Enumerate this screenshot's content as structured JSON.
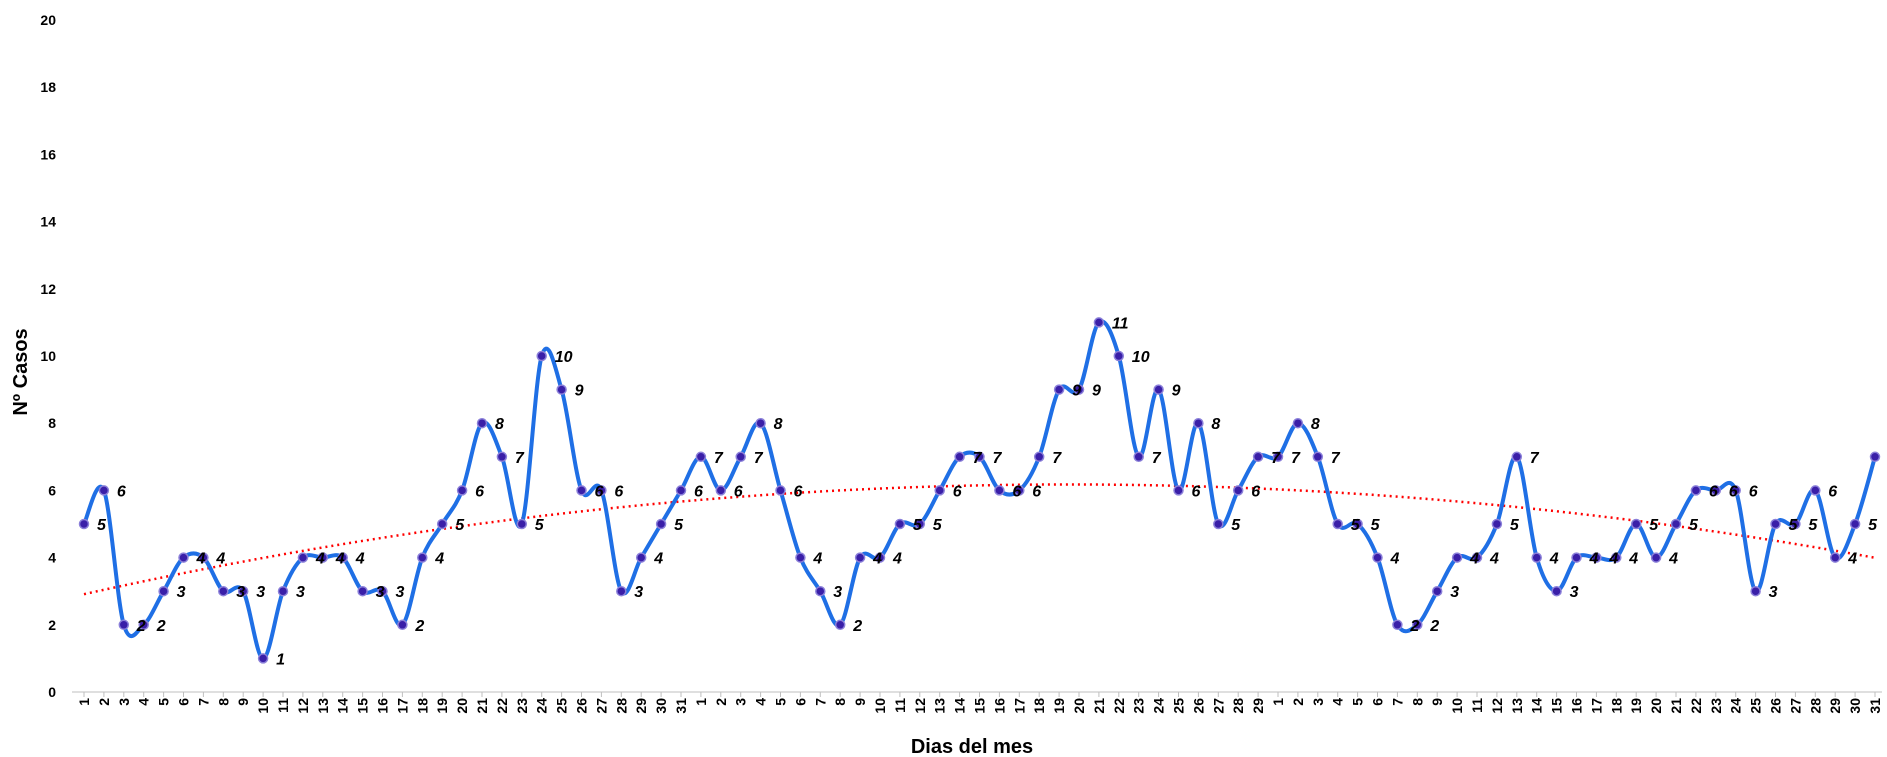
{
  "chart_data": {
    "type": "line",
    "xlabel": "Dias del mes",
    "ylabel": "Nº Casos",
    "ylim": [
      0,
      20
    ],
    "yticks": [
      0,
      2,
      4,
      6,
      8,
      10,
      12,
      14,
      16,
      18,
      20
    ],
    "grid": false,
    "categories": [
      "1",
      "2",
      "3",
      "4",
      "5",
      "6",
      "7",
      "8",
      "9",
      "10",
      "11",
      "12",
      "13",
      "14",
      "15",
      "16",
      "17",
      "18",
      "19",
      "20",
      "21",
      "22",
      "23",
      "24",
      "25",
      "26",
      "27",
      "28",
      "29",
      "30",
      "31",
      "1",
      "2",
      "3",
      "4",
      "5",
      "6",
      "7",
      "8",
      "9",
      "10",
      "11",
      "12",
      "13",
      "14",
      "15",
      "16",
      "17",
      "18",
      "19",
      "20",
      "21",
      "22",
      "23",
      "24",
      "25",
      "26",
      "27",
      "28",
      "29",
      "1",
      "2",
      "3",
      "4",
      "5",
      "6",
      "7",
      "8",
      "9",
      "10",
      "11",
      "12",
      "13",
      "14",
      "15",
      "16",
      "17",
      "18",
      "19",
      "20",
      "21",
      "22",
      "23",
      "24",
      "25",
      "26",
      "27",
      "28",
      "29",
      "30",
      "31"
    ],
    "series": [
      {
        "values": [
          5,
          6,
          2,
          2,
          3,
          4,
          4,
          3,
          3,
          1,
          3,
          4,
          4,
          4,
          3,
          3,
          2,
          4,
          5,
          6,
          8,
          7,
          5,
          10,
          9,
          6,
          6,
          3,
          4,
          5,
          6,
          7,
          6,
          7,
          8,
          6,
          4,
          3,
          2,
          4,
          4,
          5,
          5,
          6,
          7,
          7,
          6,
          6,
          7,
          9,
          9,
          11,
          10,
          7,
          9,
          6,
          8,
          5,
          6,
          7,
          7,
          8,
          7,
          5,
          5,
          4,
          2,
          2,
          3,
          4,
          4,
          5,
          7,
          4,
          3,
          4,
          4,
          4,
          5,
          4,
          5,
          6,
          6,
          6,
          3,
          5,
          5,
          6,
          4,
          5,
          7
        ],
        "color": "#1f6fe5",
        "marker_color": "#3a1fa8"
      }
    ],
    "trendline": {
      "type": "polynomial",
      "order": 2,
      "color": "#ff0000",
      "style": "dotted"
    }
  }
}
